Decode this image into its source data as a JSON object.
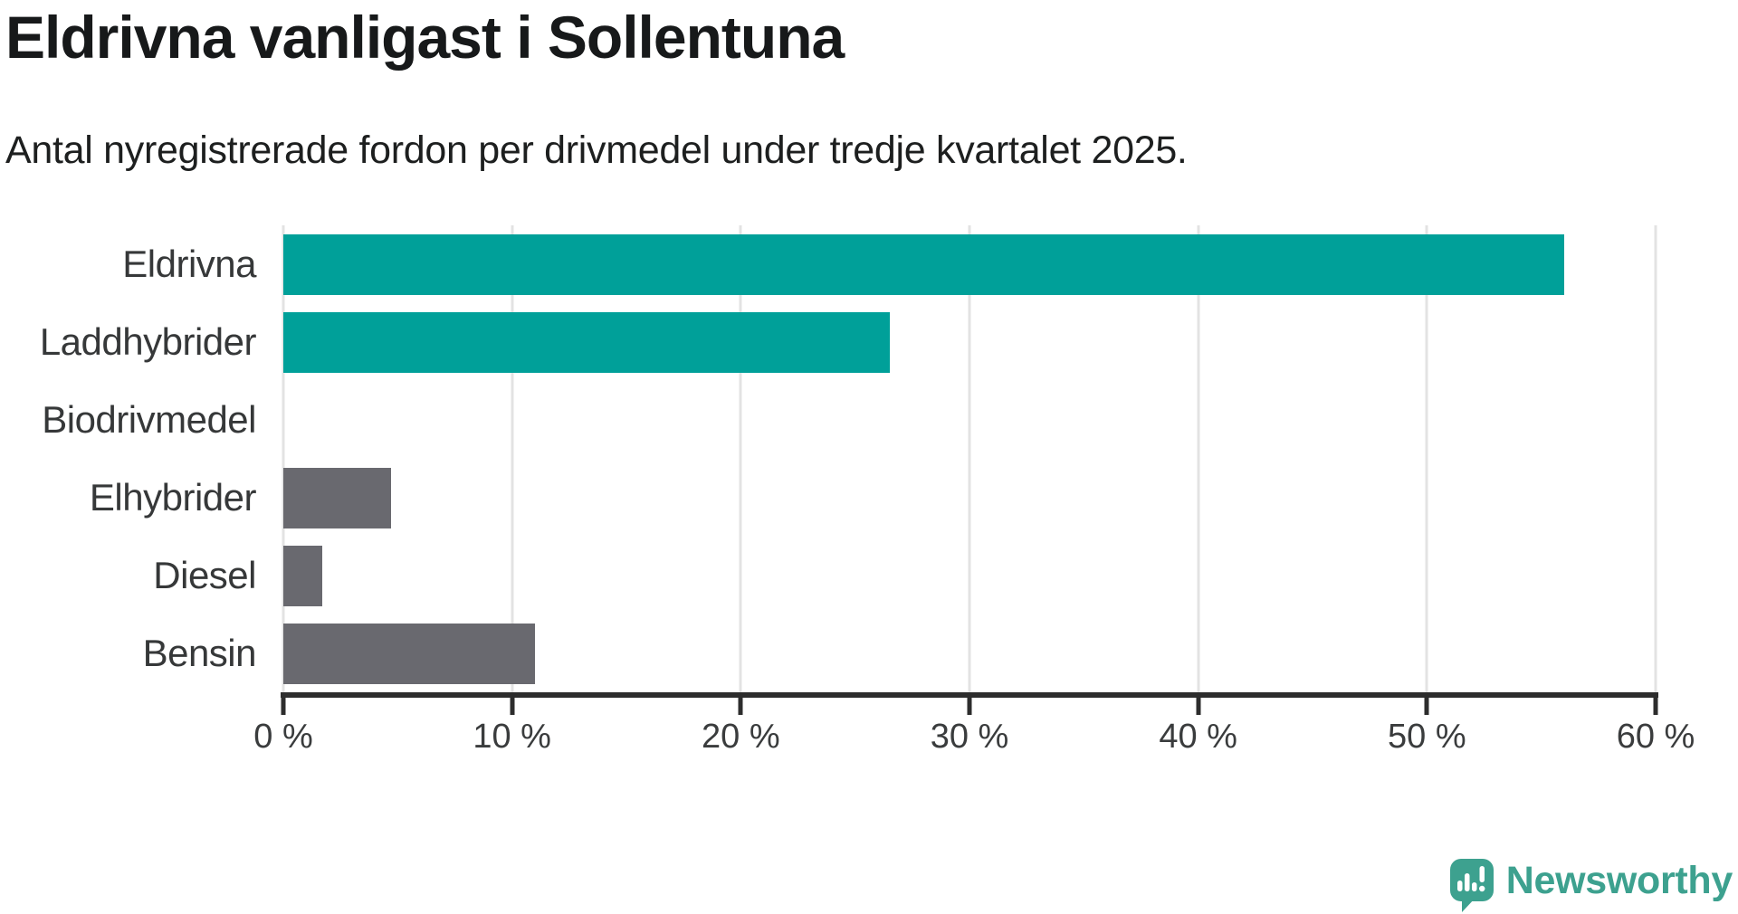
{
  "header": {
    "title": "Eldrivna vanligast i Sollentuna",
    "subtitle": "Antal nyregistrerade fordon per drivmedel under tredje kvartalet 2025."
  },
  "chart_data": {
    "type": "bar",
    "orientation": "horizontal",
    "title": "Eldrivna vanligast i Sollentuna",
    "subtitle": "Antal nyregistrerade fordon per drivmedel under tredje kvartalet 2025.",
    "categories": [
      "Eldrivna",
      "Laddhybrider",
      "Biodrivmedel",
      "Elhybrider",
      "Diesel",
      "Bensin"
    ],
    "values": [
      56,
      26.5,
      0,
      4.7,
      1.7,
      11
    ],
    "unit": "%",
    "xlim": [
      0,
      60
    ],
    "x_tick_labels": [
      "0 %",
      "10 %",
      "20 %",
      "30 %",
      "40 %",
      "50 %",
      "60 %"
    ],
    "grid": true,
    "legend": false,
    "bar_colors": [
      "teal",
      "teal",
      "gray",
      "gray",
      "gray",
      "gray"
    ]
  },
  "branding": {
    "logo_text": "Newsworthy",
    "logo_icon": "newsworthy-speech-bubble-bar-chart-icon"
  },
  "colors": {
    "teal": "#00a099",
    "gray": "#69696f",
    "grid": "#e3e3e3",
    "axis": "#2d2d2d",
    "logo": "#3da18f"
  }
}
